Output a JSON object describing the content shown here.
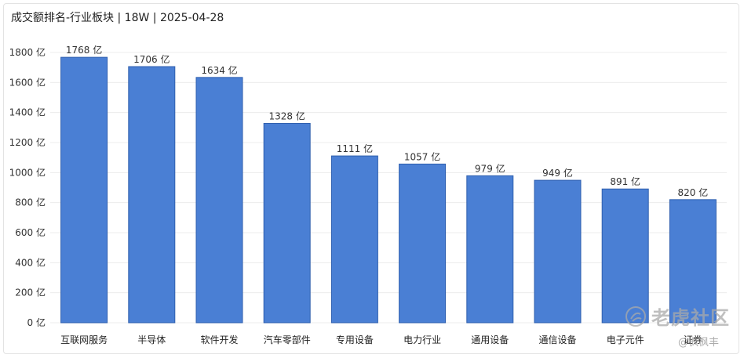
{
  "title": "成交额排名-行业板块 | 18W | 2025-04-28",
  "watermark": {
    "text": "老虎社区",
    "icon": "tiger-logo-icon",
    "author": "@枫枫丰"
  },
  "chart_data": {
    "type": "bar",
    "title": "成交额排名-行业板块 | 18W | 2025-04-28",
    "categories": [
      "互联网服务",
      "半导体",
      "软件开发",
      "汽车零部件",
      "专用设备",
      "电力行业",
      "通用设备",
      "通信设备",
      "电子元件",
      "证券"
    ],
    "values": [
      1768,
      1706,
      1634,
      1328,
      1111,
      1057,
      979,
      949,
      891,
      820
    ],
    "data_labels": [
      "1768 亿",
      "1706 亿",
      "1634 亿",
      "1328 亿",
      "1111 亿",
      "1057 亿",
      "979 亿",
      "949 亿",
      "891 亿",
      "820 亿"
    ],
    "ylim": [
      0,
      1800
    ],
    "yticks": [
      0,
      200,
      400,
      600,
      800,
      1000,
      1200,
      1400,
      1600,
      1800
    ],
    "ytick_labels": [
      "0 亿",
      "200 亿",
      "400 亿",
      "600 亿",
      "800 亿",
      "1000 亿",
      "1200 亿",
      "1400 亿",
      "1600 亿",
      "1800 亿"
    ],
    "grid": true,
    "bar_color": "#4a7fd4"
  }
}
